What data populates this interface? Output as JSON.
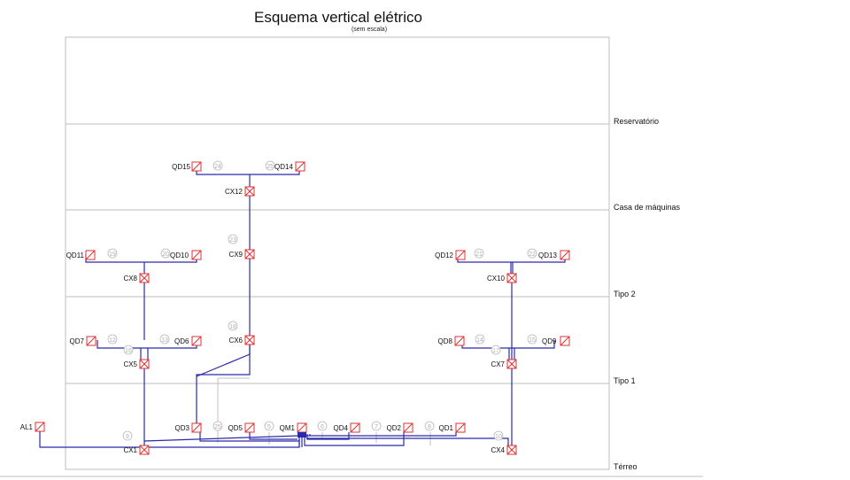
{
  "title": "Esquema vertical elétrico",
  "subtitle": "(sem escala)",
  "floors": [
    {
      "name": "Reservatório"
    },
    {
      "name": "Casa de máquinas"
    },
    {
      "name": "Tipo 2"
    },
    {
      "name": "Tipo 1"
    },
    {
      "name": "Térreo"
    }
  ],
  "panels": [
    "QD15",
    "QD14",
    "QD11",
    "QD10",
    "QD12",
    "QD13",
    "QD7",
    "QD6",
    "QD8",
    "QD9",
    "QD3",
    "QD5",
    "QM1",
    "QD4",
    "QD2",
    "QD1",
    "AL1"
  ],
  "boxes": [
    "CX12",
    "CX9",
    "CX8",
    "CX10",
    "CX6",
    "CX5",
    "CX7",
    "CX1",
    "CX4"
  ],
  "circuit_numbers": [
    "24",
    "25",
    "23",
    "19",
    "20",
    "21",
    "22",
    "18",
    "12",
    "13",
    "16",
    "14",
    "15",
    "17",
    "25",
    "5",
    "6",
    "7",
    "8",
    "9",
    "10"
  ],
  "colors": {
    "panel": "#e03030",
    "wire": "#2a2aaa",
    "gray_wire": "#c0c0c0",
    "grid": "#bdbdbd"
  }
}
